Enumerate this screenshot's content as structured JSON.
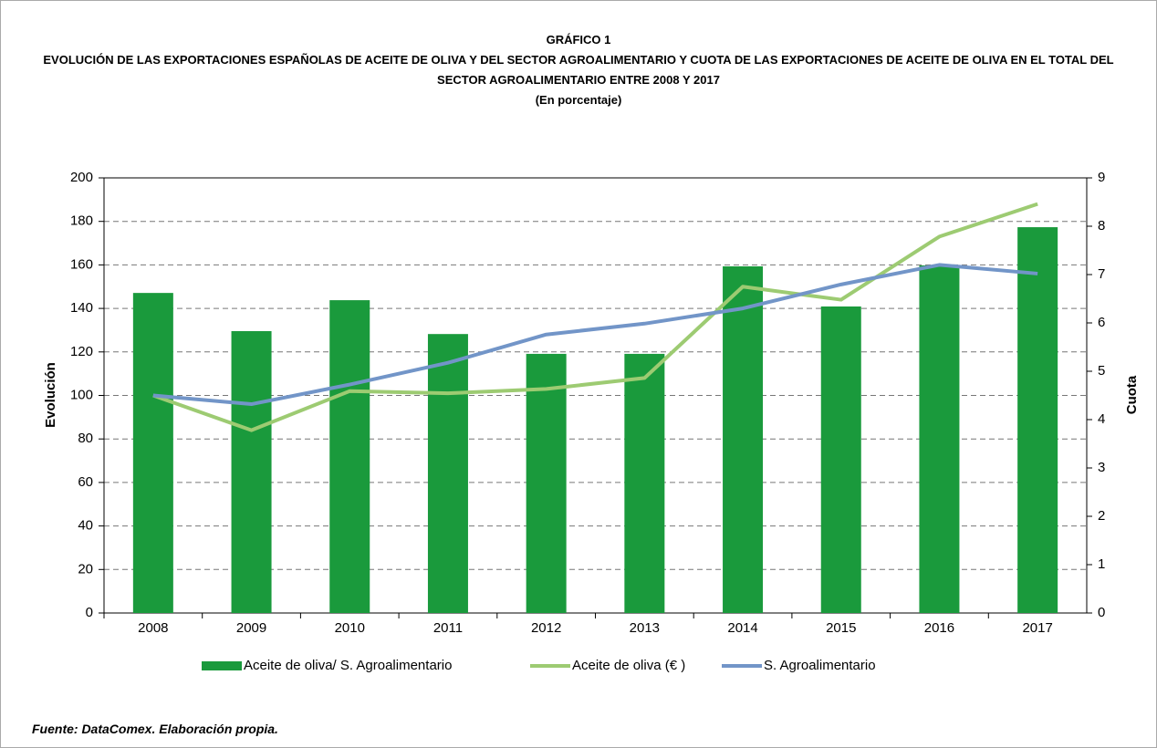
{
  "chart_data": {
    "type": "bar_line",
    "supertitle": "GRÁFICO 1",
    "title": "EVOLUCIÓN DE LAS EXPORTACIONES ESPAÑOLAS DE ACEITE DE OLIVA Y DEL SECTOR AGROALIMENTARIO Y CUOTA DE LAS EXPORTACIONES DE ACEITE DE OLIVA EN EL TOTAL DEL SECTOR AGROALIMENTARIO ENTRE 2008 Y 2017",
    "subtitle": "(En porcentaje)",
    "y_label": "Evolución",
    "y2_label": "Cuota",
    "categories": [
      "2008",
      "2009",
      "2010",
      "2011",
      "2012",
      "2013",
      "2014",
      "2015",
      "2016",
      "2017"
    ],
    "series": [
      {
        "name": "Aceite de oliva/ S. Agroalimentario",
        "type": "bar",
        "axis": "y2",
        "color": "#1a9a3c",
        "values": [
          6.62,
          5.83,
          6.47,
          5.77,
          5.36,
          5.36,
          7.17,
          6.34,
          7.19,
          7.98
        ]
      },
      {
        "name": "Aceite de oliva (€ )",
        "type": "line",
        "axis": "y",
        "color": "#9dcb72",
        "values": [
          100,
          84,
          102,
          101,
          103,
          108,
          150,
          144,
          173,
          188
        ]
      },
      {
        "name": "S. Agroalimentario",
        "type": "line",
        "axis": "y",
        "color": "#7295c8",
        "values": [
          100,
          96,
          105,
          115,
          128,
          133,
          140,
          151,
          160,
          156
        ]
      }
    ],
    "ylim": [
      0,
      200
    ],
    "yticks": [
      0,
      20,
      40,
      60,
      80,
      100,
      120,
      140,
      160,
      180,
      200
    ],
    "y2lim": [
      0,
      9
    ],
    "y2ticks": [
      0,
      1,
      2,
      3,
      4,
      5,
      6,
      7,
      8,
      9
    ],
    "grid": true,
    "source": "Fuente: DataComex. Elaboración propia."
  }
}
